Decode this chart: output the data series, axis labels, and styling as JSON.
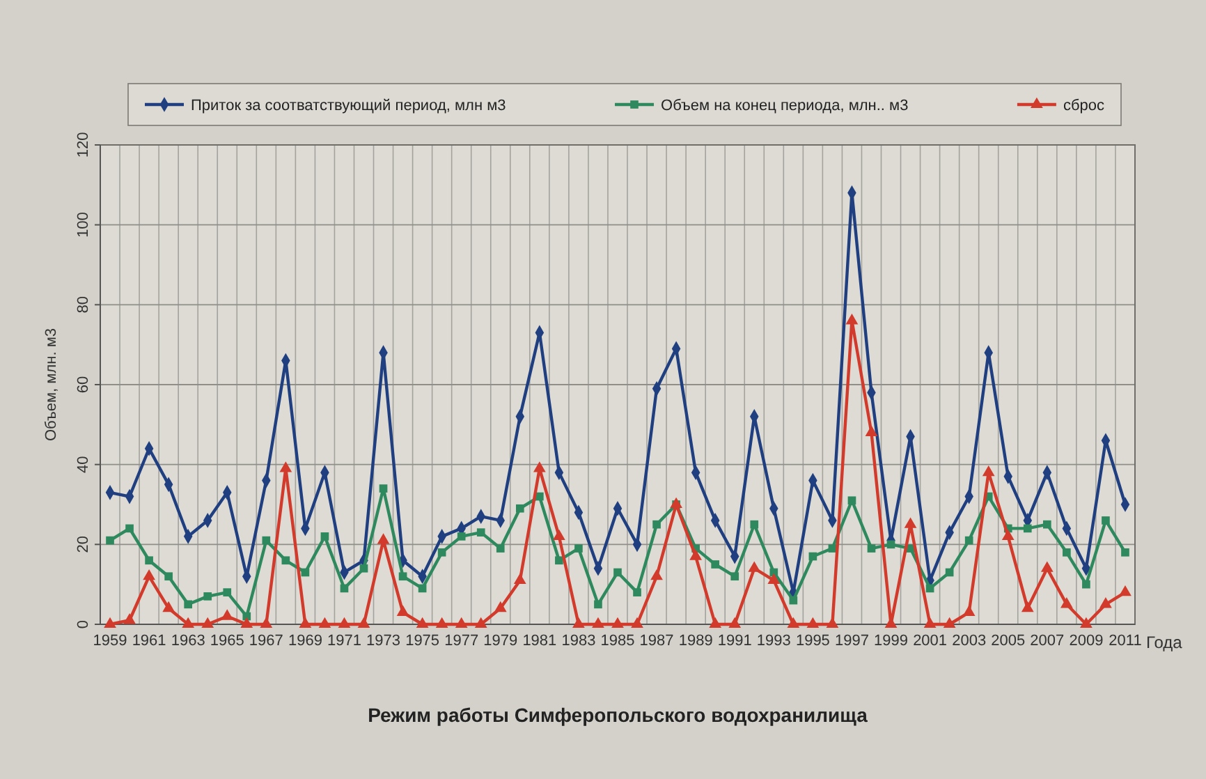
{
  "chart_data": {
    "type": "line",
    "title": "Режим работы Симферопольского водохранилища",
    "xlabel": "Года",
    "ylabel": "Объем, млн. м3",
    "categories": [
      "1959",
      null,
      "1961",
      null,
      "1963",
      null,
      "1965",
      null,
      "1967",
      null,
      "1969",
      null,
      "1971",
      null,
      "1973",
      null,
      "1975",
      null,
      "1977",
      null,
      "1979",
      null,
      "1981",
      null,
      "1983",
      null,
      "1985",
      null,
      "1987",
      null,
      "1989",
      null,
      "1991",
      null,
      "1993",
      null,
      "1995",
      null,
      "1997",
      null,
      "1999",
      null,
      "2001",
      null,
      "2003",
      null,
      "2005",
      null,
      "2007",
      null,
      "2009",
      null,
      "2011"
    ],
    "series": [
      {
        "name": "Приток за соотватствующий период, млн м3",
        "color": "#1f3f80",
        "marker": "diamond",
        "values": [
          33,
          32,
          44,
          35,
          22,
          26,
          33,
          12,
          36,
          66,
          24,
          38,
          13,
          16,
          68,
          16,
          12,
          22,
          24,
          27,
          26,
          52,
          73,
          38,
          28,
          14,
          29,
          20,
          59,
          69,
          38,
          26,
          17,
          52,
          29,
          8,
          36,
          26,
          108,
          58,
          21,
          47,
          11,
          23,
          32,
          68,
          37,
          26,
          38,
          24,
          14,
          46,
          30
        ]
      },
      {
        "name": "Объем на конец периода, млн.. м3",
        "color": "#2e8a5e",
        "marker": "square",
        "values": [
          21,
          24,
          16,
          12,
          5,
          7,
          8,
          2,
          21,
          16,
          13,
          22,
          9,
          14,
          34,
          12,
          9,
          18,
          22,
          23,
          19,
          29,
          32,
          16,
          19,
          5,
          13,
          8,
          25,
          30,
          19,
          15,
          12,
          25,
          13,
          6,
          17,
          19,
          31,
          19,
          20,
          19,
          9,
          13,
          21,
          32,
          24,
          24,
          25,
          18,
          10,
          26,
          18
        ]
      },
      {
        "name": "сброс",
        "color": "#d23b2b",
        "marker": "triangle",
        "values": [
          0,
          1,
          12,
          4,
          0,
          0,
          2,
          0,
          0,
          39,
          0,
          0,
          0,
          0,
          21,
          3,
          0,
          0,
          0,
          0,
          4,
          11,
          39,
          22,
          0,
          0,
          0,
          0,
          12,
          30,
          17,
          0,
          0,
          14,
          11,
          0,
          0,
          0,
          76,
          48,
          0,
          25,
          0,
          0,
          3,
          38,
          22,
          4,
          14,
          5,
          0,
          5,
          8
        ]
      }
    ],
    "ylim": [
      0,
      120
    ],
    "yticks": [
      0,
      20,
      40,
      60,
      80,
      100,
      120
    ],
    "grid": true,
    "legend": "top",
    "line_style": "solid"
  }
}
